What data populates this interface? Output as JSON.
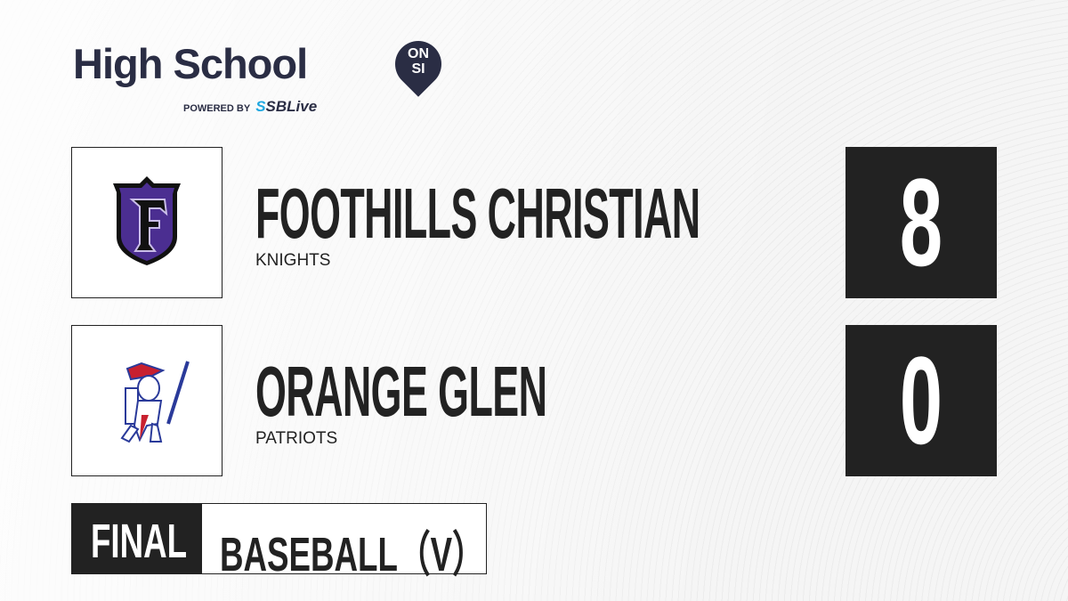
{
  "brand": {
    "title": "High School",
    "badge_line1": "ON",
    "badge_line2": "SI",
    "powered_by": "POWERED BY",
    "partner_prefix": "S",
    "partner": "SBLive"
  },
  "teams": [
    {
      "name": "FOOTHILLS CHRISTIAN",
      "mascot": "KNIGHTS",
      "score": "8",
      "logo": "shield-f-logo",
      "color": "#4b2e91"
    },
    {
      "name": "ORANGE GLEN",
      "mascot": "PATRIOTS",
      "score": "0",
      "logo": "patriot-logo",
      "color": "#2a3a9a"
    }
  ],
  "status": "FINAL",
  "sport": "BASEBALL（V）",
  "colors": {
    "dark": "#222222",
    "brand": "#2a2d44",
    "accent": "#1fa7e0"
  }
}
